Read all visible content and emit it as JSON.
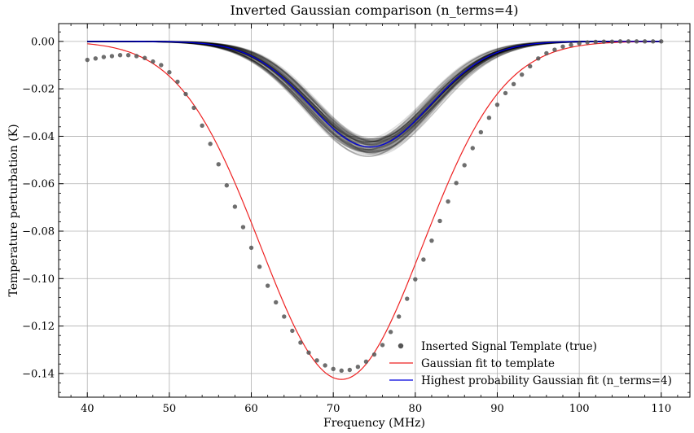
{
  "chart_data": {
    "type": "line",
    "title": "Inverted Gaussian comparison (n_terms=4)",
    "xlabel": "Frequency (MHz)",
    "ylabel": "Temperature perturbation (K)",
    "xlim": [
      36.5,
      113.5
    ],
    "ylim": [
      -0.15,
      0.0075
    ],
    "xticks": [
      40,
      50,
      60,
      70,
      80,
      90,
      100,
      110
    ],
    "yticks": [
      0.0,
      -0.02,
      -0.04,
      -0.06,
      -0.08,
      -0.1,
      -0.12,
      -0.14
    ],
    "xtick_labels": [
      "40",
      "50",
      "60",
      "70",
      "80",
      "90",
      "100",
      "110"
    ],
    "ytick_labels": [
      "0.00",
      "−0.02",
      "−0.04",
      "−0.06",
      "−0.08",
      "−0.10",
      "−0.12",
      "−0.14"
    ],
    "grid": true,
    "legend_position": "lower-right",
    "series": [
      {
        "name": "Inserted Signal Template (true)",
        "kind": "scatter",
        "color": "#555555",
        "x": [
          40,
          41,
          42,
          43,
          44,
          45,
          46,
          47,
          48,
          49,
          50,
          51,
          52,
          53,
          54,
          55,
          56,
          57,
          58,
          59,
          60,
          61,
          62,
          63,
          64,
          65,
          66,
          67,
          68,
          69,
          70,
          71,
          72,
          73,
          74,
          75,
          76,
          77,
          78,
          79,
          80,
          81,
          82,
          83,
          84,
          85,
          86,
          87,
          88,
          89,
          90,
          91,
          92,
          93,
          94,
          95,
          96,
          97,
          98,
          99,
          100,
          101,
          102,
          103,
          104,
          105,
          106,
          107,
          108,
          109,
          110
        ],
        "y": [
          -0.0078,
          -0.0072,
          -0.0066,
          -0.0062,
          -0.0058,
          -0.0058,
          -0.0062,
          -0.007,
          -0.0085,
          -0.01,
          -0.013,
          -0.017,
          -0.0222,
          -0.028,
          -0.0355,
          -0.0432,
          -0.0518,
          -0.0607,
          -0.0697,
          -0.0783,
          -0.087,
          -0.095,
          -0.103,
          -0.11,
          -0.116,
          -0.122,
          -0.127,
          -0.1312,
          -0.1345,
          -0.1366,
          -0.1381,
          -0.1388,
          -0.1385,
          -0.1372,
          -0.135,
          -0.132,
          -0.128,
          -0.1225,
          -0.116,
          -0.1085,
          -0.1003,
          -0.092,
          -0.084,
          -0.0757,
          -0.0675,
          -0.0597,
          -0.0522,
          -0.045,
          -0.0383,
          -0.0322,
          -0.0267,
          -0.0218,
          -0.018,
          -0.014,
          -0.0105,
          -0.0072,
          -0.005,
          -0.0035,
          -0.0022,
          -0.0015,
          -0.0008,
          -0.0004,
          -0.0002,
          -0.0001,
          -0.0001,
          0.0,
          0.0,
          0.0,
          0.0,
          0.0,
          0.0
        ]
      },
      {
        "name": "Gaussian fit to template",
        "kind": "line",
        "color": "#ee2222",
        "gaussian": {
          "amplitude": -0.1425,
          "center": 71.0,
          "sigma": 9.85
        }
      },
      {
        "name": "Highest probability Gaussian fit (n_terms=4)",
        "kind": "line",
        "color": "#0000dd",
        "gaussian": {
          "amplitude": -0.0445,
          "center": 74.5,
          "sigma": 7.3
        }
      }
    ],
    "posterior_samples": {
      "color": "#000000",
      "count": 80,
      "amplitude_range": [
        -0.0485,
        -0.041
      ],
      "center_range": [
        73.8,
        75.4
      ],
      "sigma_range": [
        6.9,
        7.7
      ]
    }
  }
}
